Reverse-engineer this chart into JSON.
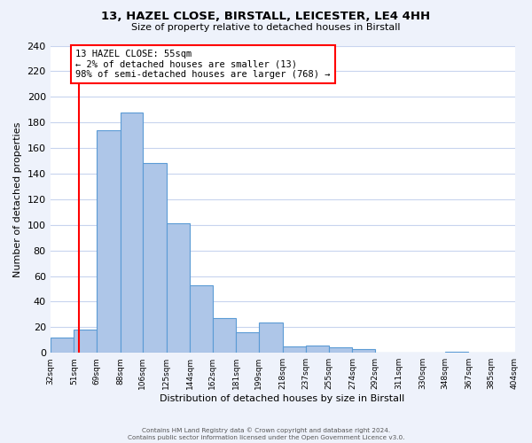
{
  "title1": "13, HAZEL CLOSE, BIRSTALL, LEICESTER, LE4 4HH",
  "title2": "Size of property relative to detached houses in Birstall",
  "xlabel": "Distribution of detached houses by size in Birstall",
  "ylabel": "Number of detached properties",
  "bin_labels": [
    "32sqm",
    "51sqm",
    "69sqm",
    "88sqm",
    "106sqm",
    "125sqm",
    "144sqm",
    "162sqm",
    "181sqm",
    "199sqm",
    "218sqm",
    "237sqm",
    "255sqm",
    "274sqm",
    "292sqm",
    "311sqm",
    "330sqm",
    "348sqm",
    "367sqm",
    "385sqm",
    "404sqm"
  ],
  "bin_edges": [
    32,
    51,
    69,
    88,
    106,
    125,
    144,
    162,
    181,
    199,
    218,
    237,
    255,
    274,
    292,
    311,
    330,
    348,
    367,
    385,
    404
  ],
  "bar_heights": [
    12,
    18,
    174,
    188,
    148,
    101,
    53,
    27,
    16,
    24,
    5,
    6,
    4,
    3,
    0,
    0,
    0,
    1,
    0,
    0,
    0
  ],
  "bar_color": "#aec6e8",
  "bar_edge_color": "#5b9bd5",
  "vline_x": 55,
  "vline_color": "red",
  "annotation_title": "13 HAZEL CLOSE: 55sqm",
  "annotation_line1": "← 2% of detached houses are smaller (13)",
  "annotation_line2": "98% of semi-detached houses are larger (768) →",
  "ylim": [
    0,
    240
  ],
  "yticks": [
    0,
    20,
    40,
    60,
    80,
    100,
    120,
    140,
    160,
    180,
    200,
    220,
    240
  ],
  "footer1": "Contains HM Land Registry data © Crown copyright and database right 2024.",
  "footer2": "Contains public sector information licensed under the Open Government Licence v3.0.",
  "bg_color": "#eef2fb",
  "plot_bg_color": "#ffffff",
  "grid_color": "#c8d4ee"
}
